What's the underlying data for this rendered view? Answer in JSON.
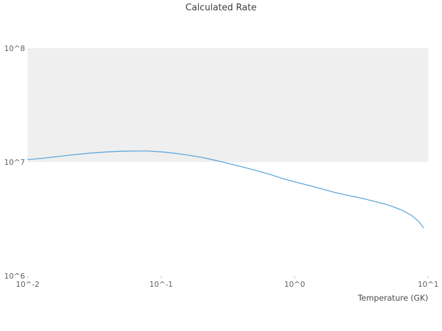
{
  "title": "Calculated Rate",
  "x_axis_label": "Temperature (GK)",
  "colors": {
    "line": "#5da5da",
    "band": "#efefef",
    "tick_text": "#5f5f5f",
    "tick_mark": "#c9c9c9",
    "background": "#ffffff"
  },
  "chart_data": {
    "type": "line",
    "title": "Calculated Rate",
    "xlabel": "Temperature (GK)",
    "ylabel": "",
    "x_scale": "log",
    "y_scale": "log",
    "xlim": [
      0.01,
      10
    ],
    "ylim": [
      1000000,
      100000000
    ],
    "grid": "off",
    "legend": "none",
    "x_tick_values": [
      0.01,
      0.1,
      1,
      10
    ],
    "x_tick_labels": [
      "10^-2",
      "10^-1",
      "10^0",
      "10^1"
    ],
    "y_tick_values": [
      1000000,
      10000000,
      100000000
    ],
    "y_tick_labels": [
      "10^6",
      "10^7",
      "10^8"
    ],
    "shaded_band_y": [
      10000000,
      100000000
    ],
    "series": [
      {
        "name": "Calculated Rate",
        "x": [
          0.01,
          0.013,
          0.017,
          0.022,
          0.03,
          0.04,
          0.05,
          0.065,
          0.08,
          0.1,
          0.13,
          0.16,
          0.2,
          0.25,
          0.3,
          0.4,
          0.5,
          0.65,
          0.8,
          1.0,
          1.3,
          1.6,
          2.0,
          2.5,
          3.2,
          4.0,
          5.0,
          6.3,
          7.5,
          8.5,
          9.2
        ],
        "y": [
          10500000,
          10800000,
          11200000,
          11600000,
          12000000,
          12300000,
          12450000,
          12500000,
          12500000,
          12300000,
          11900000,
          11500000,
          11000000,
          10400000,
          9900000,
          9100000,
          8500000,
          7800000,
          7200000,
          6700000,
          6200000,
          5800000,
          5400000,
          5100000,
          4800000,
          4500000,
          4200000,
          3800000,
          3400000,
          3000000,
          2650000
        ]
      }
    ]
  }
}
